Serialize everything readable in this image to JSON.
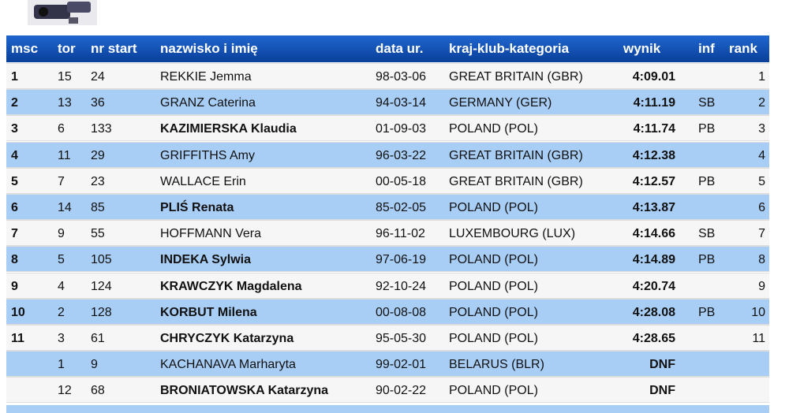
{
  "header": [
    "msc",
    "tor",
    "nr start",
    "nazwisko i imię",
    "data ur.",
    "kraj-klub-kategoria",
    "wynik",
    "inf",
    "rank"
  ],
  "rows": [
    {
      "msc": 1,
      "tor": 15,
      "nr": 24,
      "name": "REKKIE Jemma",
      "born": "98-03-06",
      "country": "GREAT BRITAIN (GBR)",
      "result": "4:09.01",
      "rank": 1
    },
    {
      "msc": 2,
      "tor": 13,
      "nr": 36,
      "name": "GRANZ Caterina",
      "born": "94-03-14",
      "country": "GERMANY (GER)",
      "result": "4:11.19",
      "inf": "SB",
      "rank": 2
    },
    {
      "msc": 3,
      "tor": 6,
      "nr": 133,
      "name": "KAZIMIERSKA Klaudia",
      "bold": true,
      "born": "01-09-03",
      "country": "POLAND (POL)",
      "result": "4:11.74",
      "inf": "PB",
      "rank": 3
    },
    {
      "msc": 4,
      "tor": 11,
      "nr": 29,
      "name": "GRIFFITHS Amy",
      "born": "96-03-22",
      "country": "GREAT BRITAIN (GBR)",
      "result": "4:12.38",
      "rank": 4
    },
    {
      "msc": 5,
      "tor": 7,
      "nr": 23,
      "name": "WALLACE Erin",
      "born": "00-05-18",
      "country": "GREAT BRITAIN (GBR)",
      "result": "4:12.57",
      "inf": "PB",
      "rank": 5
    },
    {
      "msc": 6,
      "tor": 14,
      "nr": 85,
      "name": "PLIŚ Renata",
      "bold": true,
      "born": "85-02-05",
      "country": "POLAND (POL)",
      "result": "4:13.87",
      "rank": 6
    },
    {
      "msc": 7,
      "tor": 9,
      "nr": 55,
      "name": "HOFFMANN Vera",
      "born": "96-11-02",
      "country": "LUXEMBOURG (LUX)",
      "result": "4:14.66",
      "inf": "SB",
      "rank": 7
    },
    {
      "msc": 8,
      "tor": 5,
      "nr": 105,
      "name": "INDEKA Sylwia",
      "bold": true,
      "born": "97-06-19",
      "country": "POLAND (POL)",
      "result": "4:14.89",
      "inf": "PB",
      "rank": 8
    },
    {
      "msc": 9,
      "tor": 4,
      "nr": 124,
      "name": "KRAWCZYK Magdalena",
      "bold": true,
      "born": "92-10-24",
      "country": "POLAND (POL)",
      "result": "4:20.74",
      "rank": 9
    },
    {
      "msc": 10,
      "tor": 2,
      "nr": 128,
      "name": "KORBUT Milena",
      "bold": true,
      "born": "00-08-08",
      "country": "POLAND (POL)",
      "result": "4:28.08",
      "inf": "PB",
      "rank": 10
    },
    {
      "msc": 11,
      "tor": 3,
      "nr": 61,
      "name": "CHRYCZYK Katarzyna",
      "bold": true,
      "born": "95-05-30",
      "country": "POLAND (POL)",
      "result": "4:28.65",
      "rank": 11
    },
    {
      "tor": 1,
      "nr": 9,
      "name": "KACHANAVA Marharyta",
      "born": "99-02-01",
      "country": "BELARUS (BLR)",
      "result": "DNF"
    },
    {
      "tor": 12,
      "nr": 68,
      "name": "BRONIATOWSKA Katarzyna",
      "bold": true,
      "born": "90-02-22",
      "country": "POLAND (POL)",
      "result": "DNF"
    }
  ]
}
